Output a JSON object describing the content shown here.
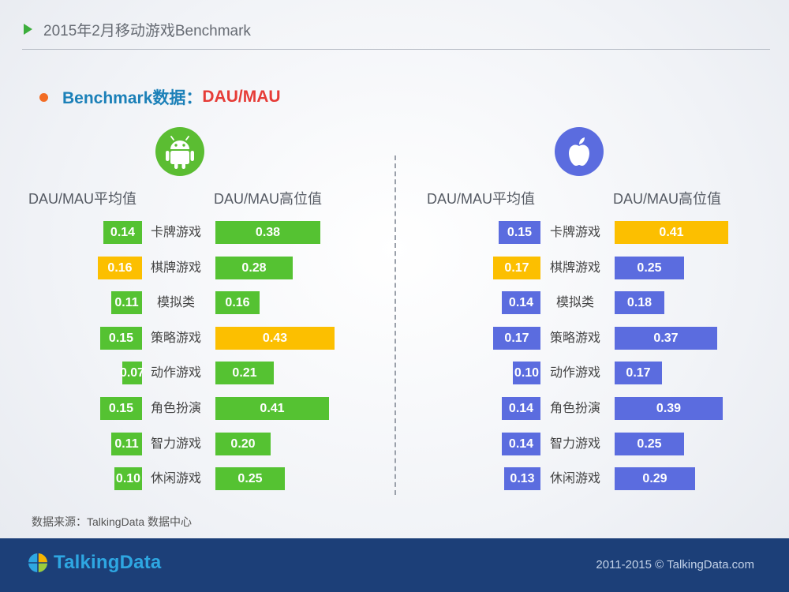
{
  "header": {
    "title": "2015年2月移动游戏Benchmark"
  },
  "subheading": {
    "prefix": "Benchmark数据：",
    "metric": "DAU/MAU"
  },
  "colors": {
    "green": "#55c232",
    "yellow": "#fcbf00",
    "blue": "#5b6cdf",
    "accent_red": "#e63c37",
    "accent_blue": "#1b80b8",
    "footer_bg": "#1c3f78"
  },
  "icons": {
    "android": "android-icon",
    "apple": "apple-icon"
  },
  "source": "数据来源：TalkingData 数据中心",
  "footer": {
    "logo": "TalkingData",
    "copyright": "2011-2015 © TalkingData.com"
  },
  "chart_data": [
    {
      "type": "bar",
      "platform": "android",
      "categories": [
        "卡牌游戏",
        "棋牌游戏",
        "模拟类",
        "策略游戏",
        "动作游戏",
        "角色扮演",
        "智力游戏",
        "休闲游戏"
      ],
      "series": [
        {
          "name": "DAU/MAU平均值",
          "values": [
            0.14,
            0.16,
            0.11,
            0.15,
            0.07,
            0.15,
            0.11,
            0.1
          ],
          "value_labels": [
            "0.14",
            "0.16",
            "0.11",
            "0.15",
            "0.07",
            "0.15",
            "0.11",
            "0.10"
          ],
          "highlight_index": 1
        },
        {
          "name": "DAU/MAU高位值",
          "values": [
            0.38,
            0.28,
            0.16,
            0.43,
            0.21,
            0.41,
            0.2,
            0.25
          ],
          "value_labels": [
            "0.38",
            "0.28",
            "0.16",
            "0.43",
            "0.21",
            "0.41",
            "0.20",
            "0.25"
          ],
          "highlight_index": 3
        }
      ]
    },
    {
      "type": "bar",
      "platform": "ios",
      "categories": [
        "卡牌游戏",
        "棋牌游戏",
        "模拟类",
        "策略游戏",
        "动作游戏",
        "角色扮演",
        "智力游戏",
        "休闲游戏"
      ],
      "series": [
        {
          "name": "DAU/MAU平均值",
          "values": [
            0.15,
            0.17,
            0.14,
            0.17,
            0.1,
            0.14,
            0.14,
            0.13
          ],
          "value_labels": [
            "0.15",
            "0.17",
            "0.14",
            "0.17",
            "0.10",
            "0.14",
            "0.14",
            "0.13"
          ],
          "highlight_index": 1
        },
        {
          "name": "DAU/MAU高位值",
          "values": [
            0.41,
            0.25,
            0.18,
            0.37,
            0.17,
            0.39,
            0.25,
            0.29
          ],
          "value_labels": [
            "0.41",
            "0.25",
            "0.18",
            "0.37",
            "0.17",
            "0.39",
            "0.25",
            "0.29"
          ],
          "highlight_index": 0
        }
      ]
    }
  ]
}
